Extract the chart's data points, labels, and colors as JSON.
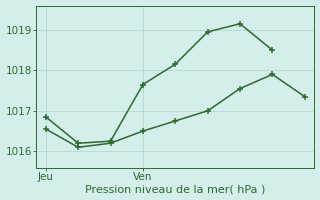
{
  "line1_x": [
    0,
    1,
    2,
    3,
    4,
    5,
    6,
    7
  ],
  "line1_y": [
    1016.85,
    1016.2,
    1016.25,
    1017.65,
    1018.15,
    1018.95,
    1019.15,
    1018.5
  ],
  "line2_x": [
    0,
    1,
    2,
    3,
    4,
    5,
    6,
    7,
    8
  ],
  "line2_y": [
    1016.55,
    1016.1,
    1016.2,
    1016.5,
    1016.75,
    1017.0,
    1017.55,
    1017.9,
    1017.35
  ],
  "line_color": "#2d6a2d",
  "bg_color": "#d4eeeb",
  "grid_color": "#b8ddd9",
  "yticks": [
    1016,
    1017,
    1018,
    1019
  ],
  "ymin": 1015.6,
  "ymax": 1019.6,
  "xmin": -0.3,
  "xmax": 8.3,
  "jeu_x": 0,
  "ven_x": 3,
  "jeu_label": "Jeu",
  "ven_label": "Ven",
  "xlabel": "Pression niveau de la mer( hPa )",
  "xlabel_fontsize": 8,
  "tick_fontsize": 7.5,
  "marker": "+",
  "markersize": 5,
  "linewidth": 1.1
}
